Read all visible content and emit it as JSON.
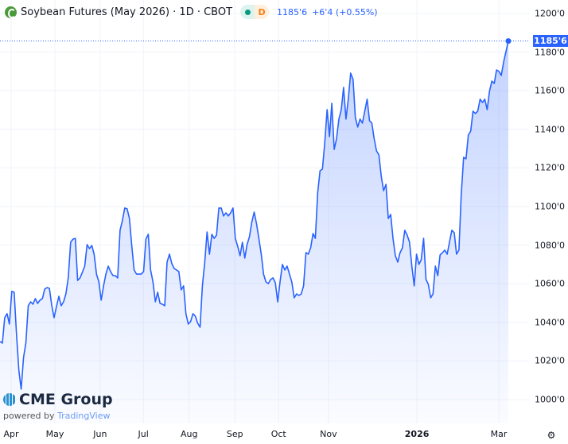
{
  "header": {
    "title": "Soybean Futures (May 2026) · 1D · CBOT",
    "status_letter": "D",
    "last_price": "1185'6",
    "change": "+6'4 (+0.55%)"
  },
  "branding": {
    "logo_text": "CME Group",
    "powered_by": "powered by",
    "provider": "TradingView"
  },
  "colors": {
    "line": "#2962ff",
    "accent": "#2962ff",
    "market_open": "#089981",
    "status": "#f57f17"
  },
  "icons": {
    "settings": "gear-icon",
    "logo": "soybean-logo-icon"
  },
  "chart_data": {
    "type": "area",
    "title": "Soybean Futures (May 2026)",
    "interval": "1D",
    "ylim": [
      995,
      1203
    ],
    "grid": true,
    "y_ticks": [
      {
        "value": 1200,
        "label": "1200'0"
      },
      {
        "value": 1180,
        "label": "1180'0"
      },
      {
        "value": 1160,
        "label": "1160'0"
      },
      {
        "value": 1140,
        "label": "1140'0"
      },
      {
        "value": 1120,
        "label": "1120'0"
      },
      {
        "value": 1100,
        "label": "1100'0"
      },
      {
        "value": 1080,
        "label": "1080'0"
      },
      {
        "value": 1060,
        "label": "1060'0"
      },
      {
        "value": 1040,
        "label": "1040'0"
      },
      {
        "value": 1020,
        "label": "1020'0"
      },
      {
        "value": 1000,
        "label": "1000'0"
      }
    ],
    "x_ticks": [
      {
        "label": "Apr",
        "frac": 0.022
      },
      {
        "label": "May",
        "frac": 0.108
      },
      {
        "label": "Jun",
        "frac": 0.197
      },
      {
        "label": "Jul",
        "frac": 0.282
      },
      {
        "label": "Aug",
        "frac": 0.372
      },
      {
        "label": "Sep",
        "frac": 0.462
      },
      {
        "label": "Oct",
        "frac": 0.548
      },
      {
        "label": "Nov",
        "frac": 0.646
      },
      {
        "label": "2026",
        "frac": 0.82,
        "bold": true
      },
      {
        "label": "Mar",
        "frac": 0.981
      }
    ],
    "last_value_label": "1185'6",
    "values": [
      1030.1,
      1029.2,
      1042.4,
      1044.5,
      1039.1,
      1056.0,
      1055.6,
      1034.2,
      1015.2,
      1005.4,
      1021.8,
      1029.2,
      1048.6,
      1050.6,
      1049.4,
      1052.3,
      1049.8,
      1051.5,
      1052.3,
      1057.2,
      1058.0,
      1057.6,
      1048.6,
      1042.4,
      1048.2,
      1053.5,
      1048.6,
      1050.6,
      1054.7,
      1063.0,
      1081.5,
      1083.1,
      1083.5,
      1061.7,
      1063.0,
      1065.9,
      1069.1,
      1080.3,
      1078.2,
      1079.8,
      1075.3,
      1065.0,
      1060.9,
      1051.5,
      1058.9,
      1065.0,
      1069.1,
      1066.3,
      1064.2,
      1064.2,
      1063.0,
      1087.7,
      1092.6,
      1099.2,
      1098.8,
      1093.8,
      1079.4,
      1067.1,
      1065.0,
      1065.0,
      1065.0,
      1066.3,
      1083.1,
      1085.6,
      1067.1,
      1060.9,
      1050.6,
      1055.6,
      1049.8,
      1049.4,
      1048.6,
      1071.2,
      1075.3,
      1070.4,
      1067.9,
      1067.1,
      1066.3,
      1056.8,
      1058.9,
      1044.5,
      1039.1,
      1040.4,
      1044.5,
      1043.2,
      1039.5,
      1037.5,
      1058.9,
      1071.2,
      1086.8,
      1075.3,
      1085.6,
      1083.5,
      1085.2,
      1099.2,
      1099.2,
      1095.1,
      1096.7,
      1095.1,
      1096.7,
      1099.2,
      1083.5,
      1079.4,
      1074.5,
      1081.5,
      1073.3,
      1080.3,
      1084.4,
      1091.8,
      1097.1,
      1091.0,
      1083.5,
      1075.3,
      1065.0,
      1060.9,
      1060.1,
      1062.2,
      1063.0,
      1060.5,
      1050.6,
      1060.9,
      1070.0,
      1067.1,
      1069.1,
      1065.0,
      1060.9,
      1052.7,
      1054.7,
      1053.9,
      1054.7,
      1058.9,
      1076.1,
      1075.3,
      1078.6,
      1086.0,
      1083.5,
      1107.4,
      1118.5,
      1119.4,
      1132.9,
      1150.2,
      1136.2,
      1153.5,
      1129.6,
      1135.0,
      1145.3,
      1150.2,
      1161.7,
      1145.3,
      1155.6,
      1169.1,
      1165.9,
      1146.1,
      1141.2,
      1145.3,
      1143.2,
      1149.4,
      1155.6,
      1144.5,
      1143.2,
      1135.0,
      1128.8,
      1126.8,
      1115.6,
      1108.2,
      1111.5,
      1093.8,
      1095.9,
      1083.5,
      1074.5,
      1071.2,
      1076.1,
      1078.6,
      1087.7,
      1085.2,
      1081.5,
      1069.1,
      1058.9,
      1075.3,
      1070.0,
      1072.4,
      1083.5,
      1062.2,
      1059.7,
      1052.7,
      1054.7,
      1069.1,
      1064.2,
      1074.9,
      1076.1,
      1077.4,
      1075.3,
      1081.5,
      1087.7,
      1086.4,
      1075.3,
      1077.4,
      1106.2,
      1125.5,
      1124.7,
      1137.0,
      1139.1,
      1149.4,
      1148.2,
      1149.4,
      1155.6,
      1153.9,
      1155.6,
      1150.2,
      1159.7,
      1165.0,
      1163.8,
      1170.8,
      1170.0,
      1167.9,
      1174.9,
      1180.3,
      1185.75
    ]
  }
}
